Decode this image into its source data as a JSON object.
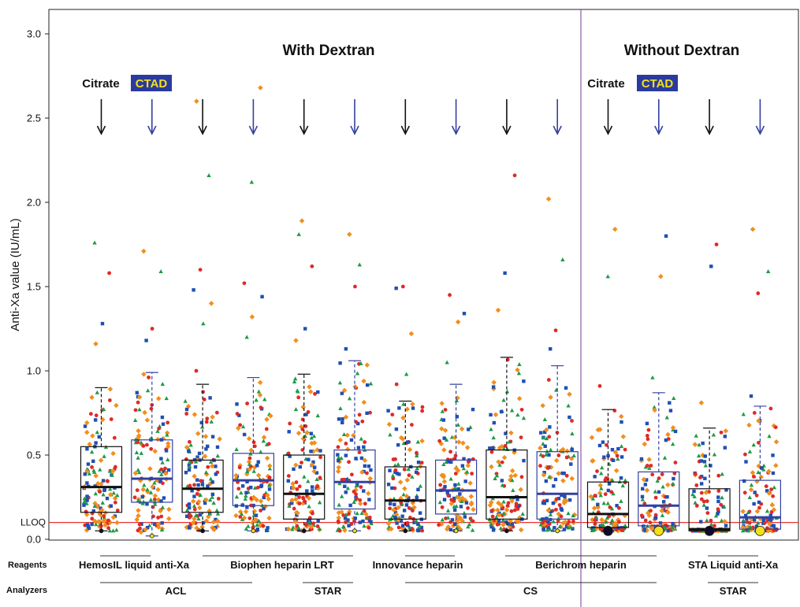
{
  "chart_data": {
    "type": "boxplot",
    "ylabel": "Anti-Xa value (IU/mL)",
    "ylim": [
      0,
      3.0
    ],
    "yticks": [
      "0.0",
      "0.5",
      "1.0",
      "1.5",
      "2.0",
      "2.5",
      "3.0"
    ],
    "lloq": {
      "label": "LLOQ",
      "value": 0.1,
      "color": "#e8322f"
    },
    "sections": [
      {
        "name": "With Dextran",
        "tubes": [
          {
            "label": "Citrate",
            "color": "#111111"
          },
          {
            "label": "CTAD",
            "color": "#2b3a9e"
          }
        ]
      },
      {
        "name": "Without Dextran",
        "tubes": [
          {
            "label": "Citrate",
            "color": "#111111"
          },
          {
            "label": "CTAD",
            "color": "#2b3a9e"
          }
        ]
      }
    ],
    "tube_colors": {
      "Citrate": "#111111",
      "CTAD": "#3340a0",
      "ctad_badge_fill": "#2b3a9e",
      "ctad_badge_text": "#f2e01a"
    },
    "marker_colors": [
      "#f28e1c",
      "#1f4fb4",
      "#e02a26",
      "#1f9a48"
    ],
    "row_titles": {
      "reagents": "Reagents",
      "analyzers": "Analyzers"
    },
    "reagents": [
      "HemosIL liquid anti-Xa",
      "Biophen heparin LRT",
      "Innovance heparin",
      "Berichrom heparin",
      "STA Liquid anti-Xa"
    ],
    "analyzers": [
      "ACL",
      "STAR",
      "CS",
      "STAR"
    ],
    "boxes": [
      {
        "tube": "Citrate",
        "q1": 0.16,
        "median": 0.31,
        "q3": 0.55,
        "whisker_low": 0.05,
        "whisker_high": 0.9,
        "outliers": [
          1.16,
          1.28,
          1.58,
          1.76
        ]
      },
      {
        "tube": "CTAD",
        "q1": 0.22,
        "median": 0.36,
        "q3": 0.59,
        "whisker_low": 0.02,
        "whisker_high": 0.99,
        "outliers": [
          1.18,
          1.25,
          1.59,
          1.71
        ]
      },
      {
        "tube": "Citrate",
        "q1": 0.16,
        "median": 0.3,
        "q3": 0.47,
        "whisker_low": 0.05,
        "whisker_high": 0.92,
        "outliers": [
          1.0,
          1.28,
          1.4,
          1.48,
          1.6,
          2.16,
          2.6
        ]
      },
      {
        "tube": "CTAD",
        "q1": 0.2,
        "median": 0.35,
        "q3": 0.51,
        "whisker_low": 0.05,
        "whisker_high": 0.96,
        "outliers": [
          1.2,
          1.32,
          1.44,
          1.52,
          2.12,
          2.68
        ]
      },
      {
        "tube": "Citrate",
        "q1": 0.12,
        "median": 0.27,
        "q3": 0.5,
        "whisker_low": 0.05,
        "whisker_high": 0.98,
        "outliers": [
          1.18,
          1.25,
          1.62,
          1.81,
          1.89
        ]
      },
      {
        "tube": "CTAD",
        "q1": 0.18,
        "median": 0.34,
        "q3": 0.53,
        "whisker_low": 0.05,
        "whisker_high": 1.06,
        "outliers": [
          1.13,
          1.5,
          1.63,
          1.81
        ]
      },
      {
        "tube": "Citrate",
        "q1": 0.12,
        "median": 0.23,
        "q3": 0.43,
        "whisker_low": 0.05,
        "whisker_high": 0.82,
        "outliers": [
          0.92,
          0.98,
          1.22,
          1.49,
          1.5
        ]
      },
      {
        "tube": "CTAD",
        "q1": 0.15,
        "median": 0.29,
        "q3": 0.47,
        "whisker_low": 0.05,
        "whisker_high": 0.92,
        "outliers": [
          1.05,
          1.29,
          1.34,
          1.45
        ]
      },
      {
        "tube": "Citrate",
        "q1": 0.12,
        "median": 0.25,
        "q3": 0.53,
        "whisker_low": 0.05,
        "whisker_high": 1.08,
        "outliers": [
          1.36,
          1.58,
          2.16
        ]
      },
      {
        "tube": "CTAD",
        "q1": 0.12,
        "median": 0.27,
        "q3": 0.52,
        "whisker_low": 0.05,
        "whisker_high": 1.03,
        "outliers": [
          1.13,
          1.24,
          1.66,
          2.02
        ]
      },
      {
        "tube": "Citrate",
        "q1": 0.07,
        "median": 0.15,
        "q3": 0.34,
        "whisker_low": 0.05,
        "whisker_high": 0.77,
        "outliers": [
          0.91,
          1.56,
          1.84
        ]
      },
      {
        "tube": "CTAD",
        "q1": 0.08,
        "median": 0.2,
        "q3": 0.4,
        "whisker_low": 0.05,
        "whisker_high": 0.87,
        "outliers": [
          0.96,
          1.56,
          1.8
        ]
      },
      {
        "tube": "Citrate",
        "q1": 0.05,
        "median": 0.06,
        "q3": 0.3,
        "whisker_low": 0.05,
        "whisker_high": 0.66,
        "outliers": [
          0.81,
          1.62,
          1.75
        ]
      },
      {
        "tube": "CTAD",
        "q1": 0.06,
        "median": 0.13,
        "q3": 0.35,
        "whisker_low": 0.05,
        "whisker_high": 0.79,
        "outliers": [
          0.85,
          1.46,
          1.59,
          1.84
        ]
      }
    ]
  }
}
